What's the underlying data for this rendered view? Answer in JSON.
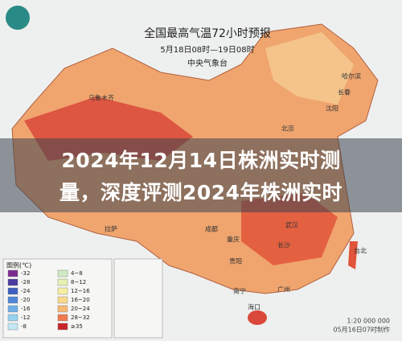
{
  "map": {
    "title": "全国最高气温72小时预报",
    "subtitle": "5月18日08时—19日08时",
    "agency": "中央气象台",
    "cities": [
      "乌鲁木齐",
      "哈尔滨",
      "长春",
      "沈阳",
      "北京",
      "拉萨",
      "成都",
      "重庆",
      "武汉",
      "长沙",
      "贵阳",
      "广州",
      "南宁",
      "海口",
      "台北"
    ],
    "legend": {
      "title": "图例(℃)",
      "items": [
        {
          "label": "-32",
          "color": "#7b2b8f"
        },
        {
          "label": "-28",
          "color": "#4b3aa0"
        },
        {
          "label": "-24",
          "color": "#3f5fc0"
        },
        {
          "label": "-20",
          "color": "#4f86d8"
        },
        {
          "label": "-16",
          "color": "#6fb0e8"
        },
        {
          "label": "-12",
          "color": "#98d0f0"
        },
        {
          "label": "-8",
          "color": "#c2e6f5"
        },
        {
          "label": "4~8",
          "color": "#cfe9c4"
        },
        {
          "label": "8~12",
          "color": "#e6f0b0"
        },
        {
          "label": "12~16",
          "color": "#f6eea0"
        },
        {
          "label": "16~20",
          "color": "#f8d98a"
        },
        {
          "label": "20~24",
          "color": "#f6b774"
        },
        {
          "label": "28~32",
          "color": "#ee7a4e"
        },
        {
          "label": "≥35",
          "color": "#c8262a"
        }
      ]
    },
    "scale": "1:20 000 000",
    "issued": "05月16日07时制作"
  },
  "overlay": {
    "line1": "2024年12月14日株洲实时测",
    "line2": "量，深度评测2024年株洲实时"
  }
}
